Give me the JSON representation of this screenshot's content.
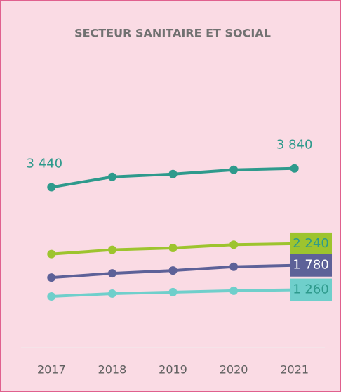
{
  "chart_data": {
    "type": "line",
    "title": "SECTEUR SANITAIRE ET SOCIAL",
    "categories": [
      "2017",
      "2018",
      "2019",
      "2020",
      "2021"
    ],
    "ylim": [
      0,
      6000
    ],
    "series": [
      {
        "color": "#2e9a8c",
        "label_style": "above",
        "label_color": "#2e9a8c",
        "values": [
          3440,
          3660,
          3720,
          3810,
          3840
        ],
        "value_labels": [
          "3 440",
          null,
          null,
          null,
          "3 840"
        ]
      },
      {
        "color": "#9dc42e",
        "label_style": "box",
        "label_color": "#2e9a8c",
        "values": [
          2020,
          2110,
          2150,
          2220,
          2240
        ],
        "value_labels": [
          null,
          null,
          null,
          null,
          "2 240"
        ]
      },
      {
        "color": "#5d6198",
        "label_style": "box",
        "label_color": "#ffffff",
        "values": [
          1520,
          1610,
          1670,
          1750,
          1780
        ],
        "value_labels": [
          null,
          null,
          null,
          null,
          "1 780"
        ]
      },
      {
        "color": "#6fcfcb",
        "label_style": "box",
        "label_color": "#2e9a8c",
        "values": [
          1120,
          1180,
          1210,
          1240,
          1260
        ],
        "value_labels": [
          null,
          null,
          null,
          null,
          "1 260"
        ]
      }
    ]
  }
}
